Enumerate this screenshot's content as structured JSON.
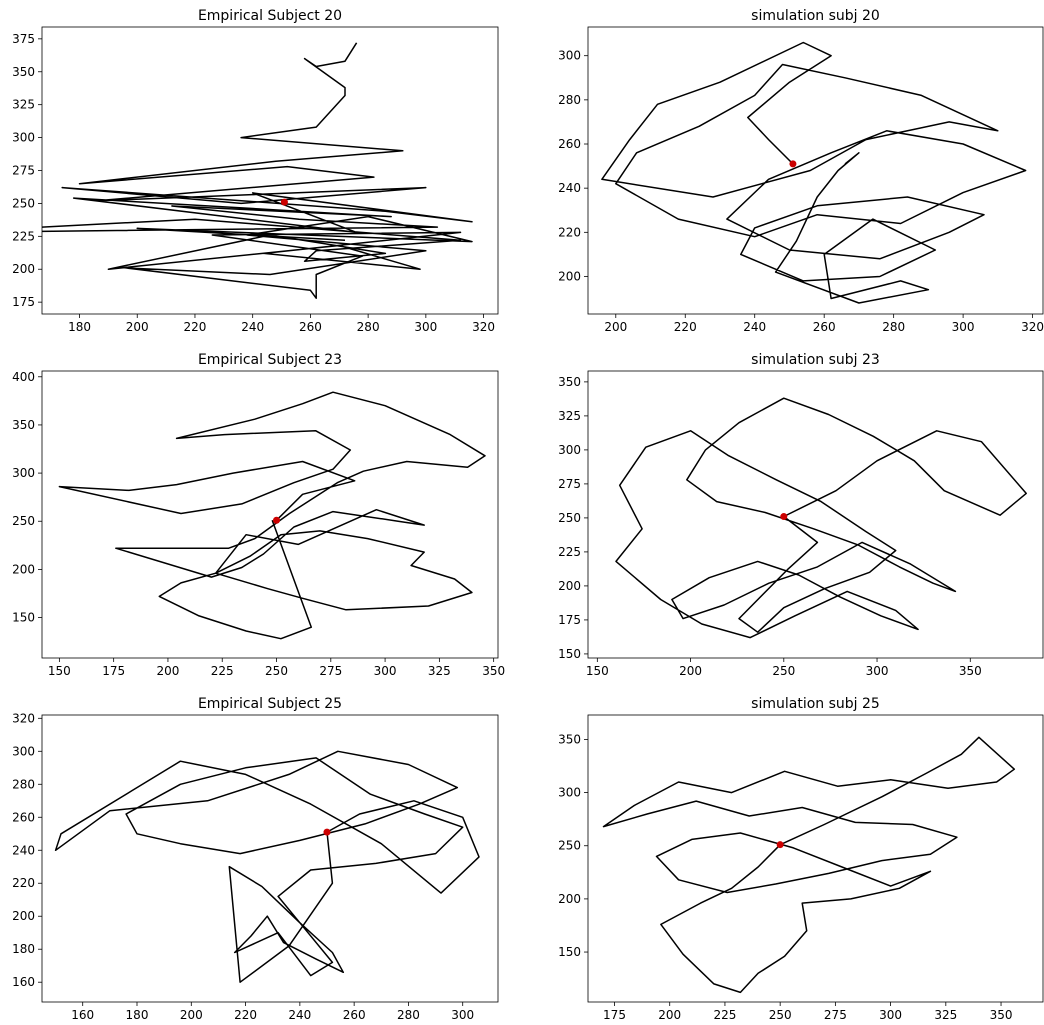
{
  "chart_data": [
    {
      "type": "line",
      "title": "Empirical Subject 20",
      "xlim": [
        167,
        325
      ],
      "ylim": [
        166,
        384
      ],
      "xticks": [
        180,
        200,
        220,
        240,
        260,
        280,
        300,
        320
      ],
      "yticks": [
        175,
        200,
        225,
        250,
        275,
        300,
        325,
        350,
        375
      ],
      "series": [
        {
          "color": "#000000",
          "x": [
            276,
            272,
            262,
            258,
            272,
            272,
            262,
            236,
            292,
            248,
            180,
            252,
            282,
            186,
            300,
            236,
            174,
            286,
            316,
            240,
            276,
            178,
            288,
            212,
            256,
            304,
            132,
            220,
            312,
            262,
            258,
            286,
            246,
            190,
            270,
            298,
            244,
            312,
            226,
            278,
            262,
            262,
            260,
            196,
            246,
            300,
            238,
            280,
            316,
            200,
            272
          ],
          "y": [
            372,
            358,
            354,
            360,
            338,
            332,
            308,
            300,
            290,
            282,
            265,
            278,
            270,
            252,
            262,
            250,
            262,
            244,
            236,
            258,
            228,
            254,
            240,
            248,
            238,
            232,
            228,
            238,
            222,
            214,
            206,
            212,
            226,
            200,
            218,
            200,
            212,
            228,
            226,
            210,
            196,
            178,
            184,
            201,
            196,
            214,
            226,
            240,
            221,
            231,
            222
          ]
        }
      ],
      "markers": [
        {
          "x": 251,
          "y": 251,
          "color": "#cc0000"
        }
      ]
    },
    {
      "type": "line",
      "title": "simulation subj 20",
      "xlim": [
        192,
        323
      ],
      "ylim": [
        183,
        313
      ],
      "xticks": [
        200,
        220,
        240,
        260,
        280,
        300,
        320
      ],
      "yticks": [
        200,
        220,
        240,
        260,
        280,
        300
      ],
      "series": [
        {
          "color": "#000000",
          "x": [
            251,
            244,
            238,
            250,
            262,
            254,
            230,
            212,
            204,
            196,
            228,
            256,
            272,
            296,
            310,
            288,
            266,
            248,
            240,
            224,
            206,
            200,
            218,
            240,
            258,
            282,
            300,
            318,
            300,
            278,
            262,
            244,
            232,
            250,
            276,
            296,
            306,
            284,
            258,
            240,
            236,
            254,
            276,
            292,
            274,
            260,
            262,
            282,
            290,
            270,
            246,
            252,
            258,
            264,
            270,
            266
          ],
          "y": [
            251,
            262,
            272,
            288,
            300,
            306,
            288,
            278,
            262,
            244,
            236,
            248,
            262,
            270,
            266,
            282,
            290,
            296,
            282,
            268,
            256,
            242,
            226,
            218,
            228,
            224,
            238,
            248,
            260,
            266,
            256,
            244,
            226,
            212,
            208,
            220,
            228,
            236,
            232,
            222,
            210,
            198,
            200,
            212,
            226,
            210,
            190,
            198,
            194,
            188,
            202,
            216,
            236,
            248,
            256,
            251
          ]
        }
      ],
      "markers": [
        {
          "x": 251,
          "y": 251,
          "color": "#cc0000"
        }
      ]
    },
    {
      "type": "line",
      "title": "Empirical Subject 23",
      "xlim": [
        142,
        352
      ],
      "ylim": [
        108,
        406
      ],
      "xticks": [
        150,
        175,
        200,
        225,
        250,
        275,
        300,
        325,
        350
      ],
      "yticks": [
        150,
        200,
        250,
        300,
        350,
        400
      ],
      "series": [
        {
          "color": "#000000",
          "x": [
            250,
            262,
            286,
            262,
            230,
            204,
            182,
            150,
            206,
            234,
            258,
            276,
            284,
            268,
            226,
            204,
            240,
            262,
            276,
            300,
            330,
            346,
            338,
            310,
            290,
            278,
            256,
            240,
            228,
            176,
            220,
            234,
            244,
            258,
            276,
            306,
            318,
            296,
            260,
            236,
            222,
            246,
            262,
            282,
            320,
            340,
            332,
            312,
            318,
            292,
            270,
            252,
            238,
            222,
            206,
            196,
            214,
            236,
            252,
            266,
            248
          ],
          "y": [
            251,
            278,
            292,
            312,
            300,
            288,
            282,
            286,
            258,
            268,
            290,
            304,
            324,
            344,
            340,
            336,
            356,
            372,
            384,
            370,
            340,
            318,
            306,
            312,
            302,
            290,
            258,
            232,
            222,
            222,
            192,
            202,
            216,
            244,
            260,
            250,
            246,
            262,
            226,
            236,
            196,
            180,
            170,
            158,
            162,
            176,
            190,
            204,
            218,
            232,
            240,
            236,
            214,
            196,
            186,
            172,
            152,
            136,
            128,
            140,
            251
          ]
        }
      ],
      "markers": [
        {
          "x": 250,
          "y": 251,
          "color": "#cc0000"
        }
      ]
    },
    {
      "type": "line",
      "title": "simulation subj 23",
      "xlim": [
        145,
        389
      ],
      "ylim": [
        147,
        358
      ],
      "xticks": [
        150,
        200,
        250,
        300,
        350
      ],
      "yticks": [
        150,
        175,
        200,
        225,
        250,
        275,
        300,
        325,
        350
      ],
      "series": [
        {
          "color": "#000000",
          "x": [
            250,
            278,
            300,
            332,
            356,
            380,
            366,
            336,
            320,
            298,
            274,
            250,
            226,
            208,
            198,
            214,
            240,
            266,
            290,
            312,
            330,
            342,
            318,
            292,
            268,
            242,
            218,
            196,
            190,
            210,
            236,
            258,
            280,
            302,
            322,
            310,
            284,
            256,
            232,
            206,
            184,
            160,
            174,
            162,
            176,
            200,
            220,
            246,
            270,
            294,
            310,
            296,
            272,
            250,
            236,
            226,
            252,
            268,
            250
          ],
          "y": [
            251,
            270,
            292,
            314,
            306,
            268,
            252,
            270,
            292,
            310,
            326,
            338,
            320,
            300,
            278,
            262,
            254,
            242,
            230,
            214,
            202,
            196,
            216,
            232,
            214,
            202,
            186,
            176,
            190,
            206,
            218,
            208,
            192,
            178,
            168,
            182,
            196,
            178,
            162,
            172,
            190,
            218,
            242,
            274,
            302,
            314,
            296,
            278,
            262,
            240,
            226,
            210,
            198,
            184,
            166,
            176,
            212,
            232,
            251
          ]
        }
      ],
      "markers": [
        {
          "x": 250,
          "y": 251,
          "color": "#cc0000"
        }
      ]
    },
    {
      "type": "line",
      "title": "Empirical Subject 25",
      "xlim": [
        145,
        313
      ],
      "ylim": [
        148,
        322
      ],
      "xticks": [
        160,
        180,
        200,
        220,
        240,
        260,
        280,
        300
      ],
      "yticks": [
        160,
        180,
        200,
        220,
        240,
        260,
        280,
        300,
        320
      ],
      "series": [
        {
          "color": "#000000",
          "x": [
            250,
            262,
            282,
            300,
            306,
            292,
            270,
            244,
            220,
            196,
            178,
            152,
            150,
            170,
            206,
            236,
            254,
            280,
            298,
            284,
            264,
            240,
            218,
            196,
            180,
            176,
            196,
            220,
            246,
            266,
            286,
            300,
            290,
            268,
            244,
            232,
            240,
            252,
            256,
            246,
            234,
            228,
            222,
            216,
            232,
            244,
            252,
            240,
            226,
            214,
            218,
            236,
            252,
            250
          ],
          "y": [
            251,
            262,
            270,
            260,
            236,
            214,
            244,
            268,
            286,
            294,
            276,
            250,
            240,
            264,
            270,
            286,
            300,
            292,
            278,
            268,
            256,
            246,
            238,
            244,
            250,
            262,
            280,
            290,
            296,
            274,
            262,
            254,
            238,
            232,
            228,
            212,
            196,
            178,
            166,
            174,
            184,
            200,
            188,
            178,
            190,
            164,
            172,
            196,
            218,
            230,
            160,
            182,
            220,
            251
          ]
        }
      ],
      "markers": [
        {
          "x": 250,
          "y": 251,
          "color": "#cc0000"
        }
      ]
    },
    {
      "type": "line",
      "title": "simulation subj 25",
      "xlim": [
        163,
        369
      ],
      "ylim": [
        103,
        373
      ],
      "xticks": [
        175,
        200,
        225,
        250,
        275,
        300,
        325,
        350
      ],
      "yticks": [
        150,
        200,
        250,
        300,
        350
      ],
      "series": [
        {
          "color": "#000000",
          "x": [
            250,
            270,
            296,
            316,
            332,
            340,
            356,
            348,
            326,
            300,
            276,
            252,
            228,
            204,
            184,
            170,
            190,
            212,
            236,
            260,
            284,
            310,
            330,
            318,
            296,
            272,
            248,
            226,
            204,
            194,
            210,
            232,
            256,
            278,
            300,
            318,
            304,
            282,
            260,
            262,
            252,
            240,
            232,
            220,
            206,
            196,
            214,
            228,
            240,
            250
          ],
          "y": [
            251,
            270,
            296,
            318,
            336,
            352,
            322,
            310,
            304,
            312,
            306,
            320,
            300,
            310,
            288,
            268,
            280,
            292,
            278,
            286,
            272,
            270,
            258,
            242,
            236,
            224,
            214,
            206,
            218,
            240,
            256,
            262,
            248,
            230,
            212,
            226,
            210,
            200,
            196,
            170,
            146,
            130,
            112,
            120,
            148,
            176,
            196,
            210,
            230,
            251
          ]
        }
      ],
      "markers": [
        {
          "x": 250,
          "y": 251,
          "color": "#cc0000"
        }
      ]
    }
  ]
}
